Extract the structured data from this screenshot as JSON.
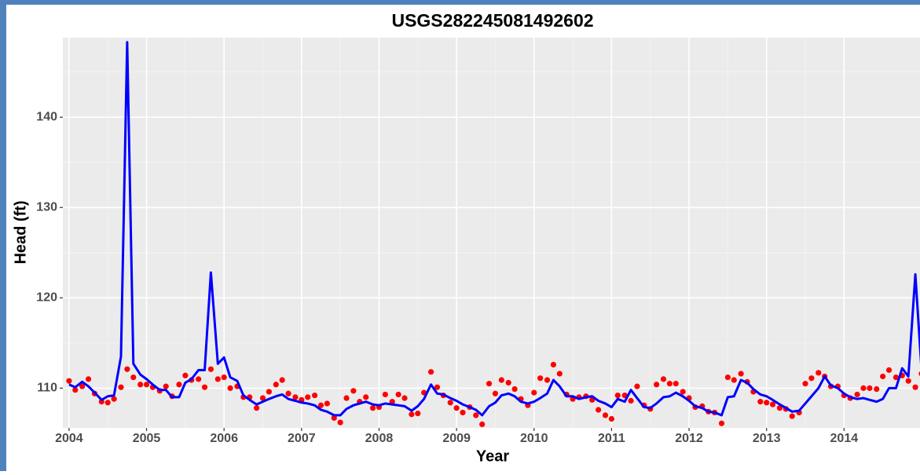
{
  "chart_data": {
    "type": "line",
    "title": "USGS282245081492602",
    "x_label": "Year",
    "y_label": "Head (ft)",
    "x": [
      2004,
      2004.08,
      2004.17,
      2004.25,
      2004.33,
      2004.42,
      2004.5,
      2004.58,
      2004.67,
      2004.75,
      2004.83,
      2004.92,
      2005,
      2005.08,
      2005.17,
      2005.25,
      2005.33,
      2005.42,
      2005.5,
      2005.58,
      2005.67,
      2005.75,
      2005.83,
      2005.92,
      2006,
      2006.08,
      2006.17,
      2006.25,
      2006.33,
      2006.42,
      2006.5,
      2006.58,
      2006.67,
      2006.75,
      2006.83,
      2006.92,
      2007,
      2007.08,
      2007.17,
      2007.25,
      2007.33,
      2007.42,
      2007.5,
      2007.58,
      2007.67,
      2007.75,
      2007.83,
      2007.92,
      2008,
      2008.08,
      2008.17,
      2008.25,
      2008.33,
      2008.42,
      2008.5,
      2008.58,
      2008.67,
      2008.75,
      2008.83,
      2008.92,
      2009,
      2009.08,
      2009.17,
      2009.25,
      2009.33,
      2009.42,
      2009.5,
      2009.58,
      2009.67,
      2009.75,
      2009.83,
      2009.92,
      2010,
      2010.08,
      2010.17,
      2010.25,
      2010.33,
      2010.42,
      2010.5,
      2010.58,
      2010.67,
      2010.75,
      2010.83,
      2010.92,
      2011,
      2011.08,
      2011.17,
      2011.25,
      2011.33,
      2011.42,
      2011.5,
      2011.58,
      2011.67,
      2011.75,
      2011.83,
      2011.92,
      2012,
      2012.08,
      2012.17,
      2012.25,
      2012.33,
      2012.42,
      2012.5,
      2012.58,
      2012.67,
      2012.75,
      2012.83,
      2012.92,
      2013,
      2013.08,
      2013.17,
      2013.25,
      2013.33,
      2013.42,
      2013.5,
      2013.58,
      2013.67,
      2013.75,
      2013.83,
      2013.92,
      2014,
      2014.08,
      2014.17,
      2014.25,
      2014.33,
      2014.42,
      2014.5,
      2014.58,
      2014.67,
      2014.75,
      2014.83,
      2014.92,
      2015
    ],
    "series": [
      {
        "style": "line",
        "color": "#0000ff",
        "values": [
          110.4,
          110.1,
          110.7,
          110.2,
          109.5,
          108.7,
          109.1,
          109.2,
          113.5,
          148.3,
          112.7,
          111.5,
          111.0,
          110.4,
          109.8,
          109.8,
          109.0,
          109.0,
          110.6,
          111.0,
          112.0,
          112.0,
          122.8,
          112.7,
          113.4,
          111.2,
          110.8,
          109.2,
          108.7,
          108.2,
          108.5,
          108.8,
          109.1,
          109.3,
          108.8,
          108.6,
          108.4,
          108.3,
          108.1,
          107.6,
          107.4,
          107.0,
          107.0,
          107.7,
          108.1,
          108.3,
          108.5,
          108.2,
          108.1,
          108.3,
          108.2,
          108.1,
          108.0,
          107.5,
          108.0,
          108.8,
          110.4,
          109.4,
          109.3,
          108.9,
          108.6,
          108.2,
          107.9,
          107.6,
          107.0,
          108.0,
          108.4,
          109.2,
          109.4,
          109.1,
          108.5,
          108.3,
          108.5,
          108.9,
          109.4,
          110.9,
          110.2,
          109.1,
          109.1,
          108.8,
          109.0,
          109.1,
          108.6,
          108.3,
          107.9,
          108.8,
          108.5,
          109.8,
          108.9,
          107.9,
          107.8,
          108.3,
          109.0,
          109.1,
          109.5,
          109.1,
          108.6,
          108.0,
          107.8,
          107.4,
          107.3,
          107.0,
          109.0,
          109.1,
          110.9,
          110.6,
          109.9,
          109.3,
          109.1,
          108.7,
          108.2,
          107.8,
          107.4,
          107.5,
          108.3,
          109.1,
          110.0,
          111.3,
          110.3,
          110.0,
          109.4,
          109.0,
          108.8,
          108.9,
          108.7,
          108.5,
          108.8,
          110.0,
          110.0,
          112.2,
          111.3,
          122.6,
          112.0
        ]
      },
      {
        "style": "points",
        "color": "#ff0000",
        "values": [
          110.8,
          109.8,
          110.2,
          111.0,
          109.4,
          108.5,
          108.4,
          108.8,
          110.1,
          112.1,
          111.2,
          110.4,
          110.4,
          110.1,
          109.7,
          110.2,
          109.1,
          110.4,
          111.4,
          110.9,
          111.0,
          110.1,
          112.1,
          111.0,
          111.2,
          110.0,
          110.2,
          109.0,
          109.0,
          107.8,
          108.9,
          109.6,
          110.4,
          110.9,
          109.4,
          109.0,
          108.7,
          109.0,
          109.2,
          108.1,
          108.3,
          106.7,
          106.2,
          108.9,
          109.7,
          108.5,
          109.0,
          107.8,
          107.9,
          109.3,
          108.5,
          109.3,
          108.9,
          107.1,
          107.2,
          109.5,
          111.8,
          110.1,
          109.2,
          108.4,
          107.8,
          107.3,
          107.9,
          107.0,
          106.0,
          110.5,
          109.4,
          110.9,
          110.6,
          109.9,
          108.8,
          108.1,
          109.5,
          111.1,
          110.9,
          112.6,
          111.6,
          109.3,
          108.8,
          109.0,
          109.1,
          108.7,
          107.6,
          107.0,
          106.6,
          109.2,
          109.2,
          108.6,
          110.2,
          108.1,
          107.7,
          110.4,
          111.0,
          110.5,
          110.5,
          109.6,
          108.9,
          107.9,
          108.0,
          107.4,
          107.3,
          106.1,
          111.2,
          110.9,
          111.6,
          110.7,
          109.6,
          108.5,
          108.4,
          108.2,
          107.8,
          107.7,
          106.9,
          107.3,
          110.5,
          111.1,
          111.7,
          111.3,
          110.2,
          110.2,
          109.2,
          108.9,
          109.3,
          110.0,
          110.0,
          109.9,
          111.3,
          112.0,
          111.2,
          111.4,
          110.8,
          110.1,
          111.6
        ]
      }
    ],
    "xlim": [
      2003.92,
      2014.98
    ],
    "xticks": [
      2004,
      2005,
      2006,
      2007,
      2008,
      2009,
      2010,
      2011,
      2012,
      2013,
      2014
    ],
    "ylim": [
      105.6,
      148.8
    ],
    "yticks": [
      110,
      120,
      130,
      140
    ],
    "grid": true
  }
}
